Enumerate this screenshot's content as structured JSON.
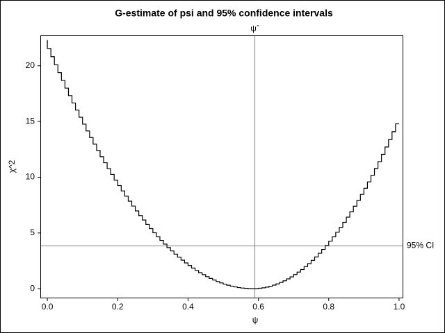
{
  "chart_data": {
    "type": "step",
    "title": "G-estimate of psi and 95% confidence intervals",
    "xlabel": "ψ",
    "ylabel": "χ^2",
    "x": [
      0,
      0.01,
      0.02,
      0.03,
      0.04,
      0.05,
      0.06,
      0.07,
      0.08,
      0.09,
      0.1,
      0.11,
      0.12,
      0.13,
      0.14,
      0.15,
      0.16,
      0.17,
      0.18,
      0.19,
      0.2,
      0.21,
      0.22,
      0.23,
      0.24,
      0.25,
      0.26,
      0.27,
      0.28,
      0.29,
      0.3,
      0.31,
      0.32,
      0.33,
      0.34,
      0.35,
      0.36,
      0.37,
      0.38,
      0.39,
      0.4,
      0.41,
      0.42,
      0.43,
      0.44,
      0.45,
      0.46,
      0.47,
      0.48,
      0.49,
      0.5,
      0.51,
      0.52,
      0.53,
      0.54,
      0.55,
      0.56,
      0.57,
      0.58,
      0.59,
      0.6,
      0.61,
      0.62,
      0.63,
      0.64,
      0.65,
      0.66,
      0.67,
      0.68,
      0.69,
      0.7,
      0.71,
      0.72,
      0.73,
      0.74,
      0.75,
      0.76,
      0.77,
      0.78,
      0.79,
      0.8,
      0.81,
      0.82,
      0.83,
      0.84,
      0.85,
      0.86,
      0.87,
      0.88,
      0.89,
      0.9,
      0.91,
      0.92,
      0.93,
      0.94,
      0.95,
      0.96,
      0.97,
      0.98,
      0.99,
      1
    ],
    "series": [
      {
        "color": "#000000",
        "values": [
          22.3,
          21.55,
          20.81,
          20.09,
          19.38,
          18.68,
          17.99,
          17.32,
          16.66,
          16.02,
          15.38,
          14.76,
          14.15,
          13.56,
          12.97,
          12.4,
          11.84,
          11.3,
          10.77,
          10.25,
          9.74,
          9.25,
          8.77,
          8.3,
          7.85,
          7.41,
          6.98,
          6.56,
          6.16,
          5.77,
          5.39,
          5.02,
          4.67,
          4.33,
          4.0,
          3.69,
          3.39,
          3.1,
          2.83,
          2.56,
          2.31,
          2.08,
          1.85,
          1.64,
          1.44,
          1.26,
          1.08,
          0.92,
          0.78,
          0.64,
          0.52,
          0.41,
          0.31,
          0.23,
          0.16,
          0.1,
          0.06,
          0.03,
          0.01,
          0,
          0.01,
          0.04,
          0.08,
          0.14,
          0.22,
          0.32,
          0.43,
          0.56,
          0.71,
          0.88,
          1.06,
          1.27,
          1.49,
          1.72,
          1.98,
          2.25,
          2.54,
          2.85,
          3.18,
          3.52,
          3.88,
          4.26,
          4.66,
          5.07,
          5.5,
          5.95,
          6.42,
          6.9,
          7.4,
          7.92,
          8.46,
          9.01,
          9.58,
          10.17,
          10.78,
          11.4,
          12.05,
          12.71,
          13.38,
          14.08,
          14.79
        ]
      }
    ],
    "xlim": [
      -0.018,
      1.01
    ],
    "ylim": [
      -0.8,
      22.66
    ],
    "xticks": [
      {
        "value": 0,
        "label": "0.0"
      },
      0.2,
      0.4,
      0.6,
      0.8,
      {
        "value": 1,
        "label": "1.0"
      }
    ],
    "yticks": [
      0,
      5,
      10,
      15,
      20
    ],
    "vline": {
      "x": 0.59,
      "label": "ψˆ",
      "color": "#808080"
    },
    "hline": {
      "y": 3.84,
      "label": "95% CI",
      "color": "#808080"
    }
  }
}
